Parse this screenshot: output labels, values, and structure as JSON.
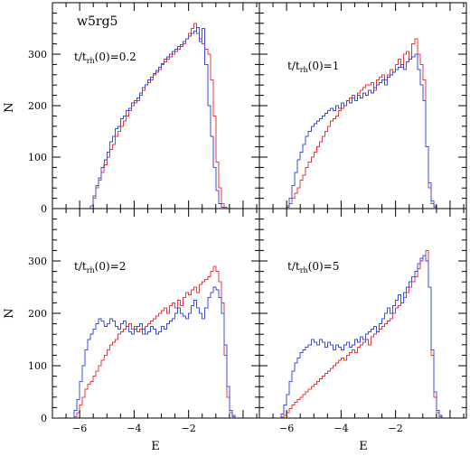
{
  "figure": {
    "title": "w5rg5",
    "ylabel": "N",
    "xlabel": "E",
    "colors": {
      "red": "#e8383d",
      "blue": "#3a4fe0",
      "frame": "#000000"
    }
  },
  "chart_data": [
    {
      "type": "histogram",
      "panel": "top-left",
      "annotation": {
        "main": "t/t",
        "sub": "rh",
        "tail": "(0)=0.2"
      },
      "xlim": [
        -7,
        0.6
      ],
      "ylim": [
        0,
        400
      ],
      "x": [
        -5.6,
        -5.5,
        -5.4,
        -5.3,
        -5.2,
        -5.1,
        -5.0,
        -4.9,
        -4.8,
        -4.7,
        -4.6,
        -4.5,
        -4.4,
        -4.3,
        -4.2,
        -4.1,
        -4.0,
        -3.9,
        -3.8,
        -3.7,
        -3.6,
        -3.5,
        -3.4,
        -3.3,
        -3.2,
        -3.1,
        -3.0,
        -2.9,
        -2.8,
        -2.7,
        -2.6,
        -2.5,
        -2.4,
        -2.3,
        -2.2,
        -2.1,
        -2.0,
        -1.9,
        -1.8,
        -1.7,
        -1.6,
        -1.5,
        -1.4,
        -1.3,
        -1.2,
        -1.1,
        -1.0,
        -0.9,
        -0.8,
        -0.7,
        -0.6,
        -0.5,
        -0.4,
        -0.3
      ],
      "series": [
        {
          "color": "red",
          "values": [
            5,
            20,
            40,
            55,
            70,
            85,
            100,
            115,
            125,
            140,
            150,
            160,
            170,
            180,
            190,
            200,
            205,
            210,
            220,
            230,
            240,
            245,
            250,
            260,
            265,
            270,
            280,
            285,
            290,
            295,
            300,
            305,
            310,
            315,
            320,
            330,
            340,
            350,
            360,
            340,
            330,
            320,
            310,
            300,
            250,
            180,
            90,
            40,
            10,
            3,
            0,
            0,
            0,
            0
          ]
        },
        {
          "color": "blue",
          "values": [
            5,
            25,
            45,
            60,
            80,
            95,
            110,
            130,
            140,
            155,
            160,
            175,
            180,
            190,
            195,
            205,
            210,
            215,
            225,
            235,
            240,
            250,
            255,
            262,
            268,
            275,
            282,
            290,
            295,
            300,
            305,
            310,
            315,
            318,
            325,
            330,
            335,
            340,
            345,
            352,
            325,
            350,
            280,
            200,
            140,
            80,
            35,
            10,
            3,
            0,
            0,
            0,
            0,
            0
          ]
        }
      ]
    },
    {
      "type": "histogram",
      "panel": "top-right",
      "annotation": {
        "main": "t/t",
        "sub": "rh",
        "tail": "(0)=1"
      },
      "xlim": [
        -7,
        0.6
      ],
      "ylim": [
        0,
        400
      ],
      "x": [
        -6.0,
        -5.9,
        -5.8,
        -5.7,
        -5.6,
        -5.5,
        -5.4,
        -5.3,
        -5.2,
        -5.1,
        -5.0,
        -4.9,
        -4.8,
        -4.7,
        -4.6,
        -4.5,
        -4.4,
        -4.3,
        -4.2,
        -4.1,
        -4.0,
        -3.9,
        -3.8,
        -3.7,
        -3.6,
        -3.5,
        -3.4,
        -3.3,
        -3.2,
        -3.1,
        -3.0,
        -2.9,
        -2.8,
        -2.7,
        -2.6,
        -2.5,
        -2.4,
        -2.3,
        -2.2,
        -2.1,
        -2.0,
        -1.9,
        -1.8,
        -1.7,
        -1.6,
        -1.5,
        -1.4,
        -1.3,
        -1.2,
        -1.1,
        -1.0,
        -0.9,
        -0.8,
        -0.7,
        -0.6,
        -0.5,
        -0.4,
        -0.3
      ],
      "series": [
        {
          "color": "red",
          "values": [
            3,
            10,
            20,
            30,
            40,
            55,
            65,
            80,
            90,
            100,
            110,
            120,
            130,
            140,
            150,
            160,
            170,
            175,
            180,
            190,
            195,
            200,
            210,
            215,
            220,
            210,
            225,
            230,
            235,
            240,
            240,
            245,
            230,
            250,
            255,
            260,
            250,
            260,
            270,
            265,
            280,
            290,
            275,
            300,
            305,
            290,
            320,
            330,
            300,
            280,
            250,
            120,
            40,
            10,
            3,
            0,
            0,
            0
          ]
        },
        {
          "color": "blue",
          "values": [
            5,
            20,
            45,
            70,
            95,
            110,
            125,
            140,
            150,
            160,
            165,
            170,
            175,
            180,
            185,
            190,
            195,
            190,
            200,
            195,
            205,
            200,
            210,
            205,
            215,
            210,
            220,
            215,
            225,
            220,
            230,
            225,
            235,
            240,
            245,
            250,
            240,
            255,
            260,
            265,
            270,
            275,
            280,
            270,
            285,
            290,
            295,
            300,
            270,
            240,
            210,
            120,
            50,
            15,
            5,
            0,
            0,
            0
          ]
        }
      ]
    },
    {
      "type": "histogram",
      "panel": "bottom-left",
      "annotation": {
        "main": "t/t",
        "sub": "rh",
        "tail": "(0)=2"
      },
      "xlim": [
        -7,
        0.6
      ],
      "ylim": [
        0,
        400
      ],
      "x": [
        -6.2,
        -6.1,
        -6.0,
        -5.9,
        -5.8,
        -5.7,
        -5.6,
        -5.5,
        -5.4,
        -5.3,
        -5.2,
        -5.1,
        -5.0,
        -4.9,
        -4.8,
        -4.7,
        -4.6,
        -4.5,
        -4.4,
        -4.3,
        -4.2,
        -4.1,
        -4.0,
        -3.9,
        -3.8,
        -3.7,
        -3.6,
        -3.5,
        -3.4,
        -3.3,
        -3.2,
        -3.1,
        -3.0,
        -2.9,
        -2.8,
        -2.7,
        -2.6,
        -2.5,
        -2.4,
        -2.3,
        -2.2,
        -2.1,
        -2.0,
        -1.9,
        -1.8,
        -1.7,
        -1.6,
        -1.5,
        -1.4,
        -1.3,
        -1.2,
        -1.1,
        -1.0,
        -0.9,
        -0.8,
        -0.7,
        -0.6,
        -0.5,
        -0.4
      ],
      "series": [
        {
          "color": "red",
          "values": [
            3,
            10,
            25,
            40,
            55,
            65,
            70,
            80,
            90,
            100,
            110,
            120,
            130,
            140,
            145,
            150,
            160,
            165,
            170,
            175,
            180,
            170,
            175,
            165,
            170,
            160,
            175,
            180,
            185,
            190,
            195,
            200,
            205,
            210,
            200,
            215,
            220,
            210,
            225,
            215,
            230,
            240,
            235,
            245,
            250,
            240,
            255,
            260,
            265,
            270,
            280,
            290,
            280,
            260,
            220,
            120,
            40,
            10,
            3
          ]
        },
        {
          "color": "blue",
          "values": [
            15,
            35,
            70,
            100,
            130,
            150,
            160,
            170,
            180,
            190,
            185,
            175,
            180,
            190,
            185,
            175,
            170,
            180,
            185,
            175,
            165,
            160,
            170,
            175,
            180,
            170,
            160,
            165,
            175,
            170,
            160,
            165,
            175,
            170,
            180,
            185,
            190,
            200,
            210,
            200,
            195,
            190,
            200,
            215,
            225,
            210,
            200,
            190,
            210,
            230,
            240,
            250,
            245,
            230,
            200,
            140,
            60,
            15,
            5
          ]
        }
      ]
    },
    {
      "type": "histogram",
      "panel": "bottom-right",
      "annotation": {
        "main": "t/t",
        "sub": "rh",
        "tail": "(0)=5"
      },
      "xlim": [
        -7,
        0.6
      ],
      "ylim": [
        0,
        400
      ],
      "x": [
        -6.2,
        -6.1,
        -6.0,
        -5.9,
        -5.8,
        -5.7,
        -5.6,
        -5.5,
        -5.4,
        -5.3,
        -5.2,
        -5.1,
        -5.0,
        -4.9,
        -4.8,
        -4.7,
        -4.6,
        -4.5,
        -4.4,
        -4.3,
        -4.2,
        -4.1,
        -4.0,
        -3.9,
        -3.8,
        -3.7,
        -3.6,
        -3.5,
        -3.4,
        -3.3,
        -3.2,
        -3.1,
        -3.0,
        -2.9,
        -2.8,
        -2.7,
        -2.6,
        -2.5,
        -2.4,
        -2.3,
        -2.2,
        -2.1,
        -2.0,
        -1.9,
        -1.8,
        -1.7,
        -1.6,
        -1.5,
        -1.4,
        -1.3,
        -1.2,
        -1.1,
        -1.0,
        -0.9,
        -0.8,
        -0.7,
        -0.6,
        -0.5,
        -0.4
      ],
      "series": [
        {
          "color": "red",
          "values": [
            2,
            5,
            10,
            18,
            25,
            30,
            35,
            40,
            45,
            50,
            55,
            60,
            65,
            70,
            75,
            80,
            85,
            90,
            95,
            100,
            105,
            110,
            115,
            110,
            120,
            125,
            130,
            125,
            135,
            140,
            145,
            150,
            140,
            155,
            160,
            165,
            170,
            175,
            180,
            185,
            190,
            200,
            210,
            215,
            220,
            230,
            240,
            250,
            260,
            270,
            285,
            300,
            310,
            320,
            250,
            120,
            40,
            10,
            3
          ]
        },
        {
          "color": "blue",
          "values": [
            8,
            25,
            45,
            70,
            90,
            105,
            115,
            125,
            130,
            135,
            140,
            150,
            145,
            140,
            150,
            145,
            135,
            145,
            140,
            130,
            140,
            135,
            130,
            140,
            145,
            135,
            140,
            150,
            145,
            155,
            150,
            160,
            165,
            170,
            175,
            165,
            180,
            190,
            200,
            210,
            200,
            215,
            225,
            235,
            220,
            240,
            250,
            260,
            270,
            280,
            295,
            305,
            310,
            300,
            250,
            130,
            50,
            15,
            5
          ]
        }
      ]
    }
  ],
  "axes": {
    "xticks": [
      "-6",
      "-4",
      "-2"
    ],
    "yticks": [
      "0",
      "100",
      "200",
      "300"
    ]
  }
}
